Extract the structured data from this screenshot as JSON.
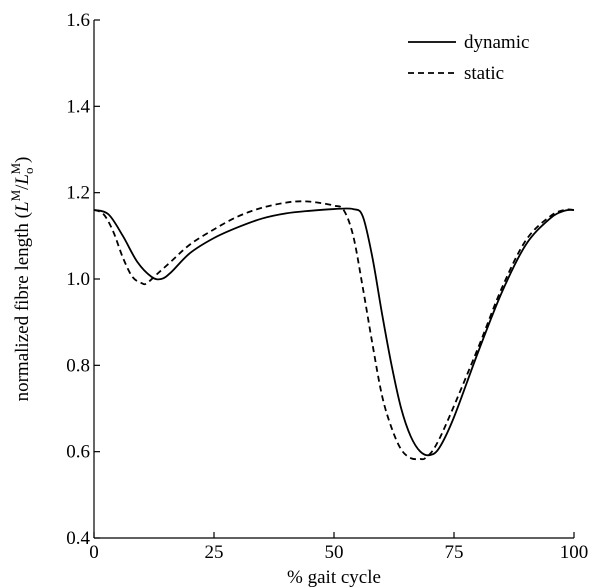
{
  "chart_data": {
    "type": "line",
    "title": "",
    "xlabel": "% gait cycle",
    "ylabel": "normalized fibre length (",
    "ylabel_math": {
      "L": "L",
      "M_sup": "M",
      "slash": "/",
      "L2": "L",
      "o_sub": "o",
      "M_sup2": "M",
      "close": ")"
    },
    "xlim": [
      0,
      100
    ],
    "ylim": [
      0.4,
      1.6
    ],
    "x_ticks": [
      0,
      25,
      50,
      75,
      100
    ],
    "x_tick_labels": [
      "0",
      "25",
      "50",
      "75",
      "100"
    ],
    "y_ticks": [
      0.4,
      0.6,
      0.8,
      1.0,
      1.2,
      1.4,
      1.6
    ],
    "y_tick_labels": [
      "0.4",
      "0.6",
      "0.8",
      "1.0",
      "1.2",
      "1.4",
      "1.6"
    ],
    "grid": false,
    "legend_position": "top-right",
    "series": [
      {
        "name": "dynamic",
        "style": "solid",
        "color": "#000000",
        "x": [
          0,
          3,
          6,
          9,
          12,
          14,
          16,
          20,
          25,
          30,
          35,
          40,
          45,
          50,
          54,
          56,
          58,
          60,
          62,
          64,
          66,
          68,
          70,
          72,
          75,
          80,
          85,
          90,
          95,
          98,
          100
        ],
        "y": [
          1.16,
          1.15,
          1.1,
          1.04,
          1.005,
          1.0,
          1.015,
          1.06,
          1.095,
          1.12,
          1.14,
          1.152,
          1.158,
          1.162,
          1.162,
          1.145,
          1.05,
          0.92,
          0.8,
          0.7,
          0.635,
          0.6,
          0.592,
          0.61,
          0.68,
          0.83,
          0.97,
          1.08,
          1.14,
          1.158,
          1.16
        ]
      },
      {
        "name": "static",
        "style": "dashed",
        "color": "#000000",
        "x": [
          0,
          2,
          4,
          6,
          8,
          10,
          11,
          13,
          16,
          20,
          25,
          30,
          35,
          40,
          43,
          46,
          50,
          52,
          54,
          56,
          58,
          60,
          62,
          64,
          66,
          68,
          69,
          71,
          74,
          80,
          85,
          90,
          95,
          98,
          100
        ],
        "y": [
          1.16,
          1.15,
          1.11,
          1.05,
          1.005,
          0.99,
          0.99,
          1.01,
          1.04,
          1.08,
          1.115,
          1.145,
          1.165,
          1.177,
          1.18,
          1.178,
          1.17,
          1.16,
          1.1,
          0.98,
          0.85,
          0.73,
          0.655,
          0.605,
          0.585,
          0.583,
          0.585,
          0.61,
          0.68,
          0.84,
          0.98,
          1.09,
          1.145,
          1.16,
          1.16
        ]
      }
    ]
  }
}
